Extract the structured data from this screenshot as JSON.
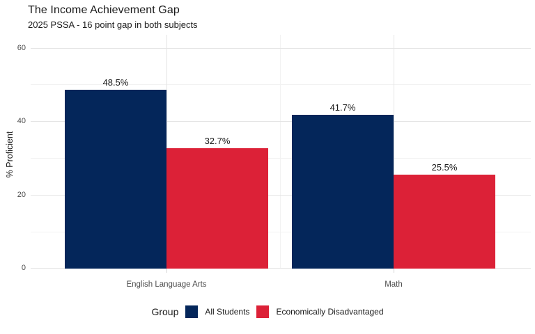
{
  "chart_data": {
    "type": "bar",
    "title": "The Income Achievement Gap",
    "subtitle": "2025 PSSA - 16 point gap in both subjects",
    "ylabel": "% Proficient",
    "xlabel": "",
    "categories": [
      "English Language Arts",
      "Math"
    ],
    "series": [
      {
        "name": "All Students",
        "color": "#04265a",
        "values": [
          48.5,
          41.7
        ]
      },
      {
        "name": "Economically Disadvantaged",
        "color": "#dc2137",
        "values": [
          32.7,
          25.5
        ]
      }
    ],
    "value_label_format": "percent_one_decimal",
    "value_labels": [
      [
        "48.5%",
        "41.7%"
      ],
      [
        "32.7%",
        "25.5%"
      ]
    ],
    "yticks": [
      0,
      20,
      40,
      60
    ],
    "yticks_minor": [
      10,
      30,
      50
    ],
    "ylim": [
      0,
      63.5
    ],
    "grid": "major_and_minor",
    "legend_title": "Group",
    "legend_position": "bottom"
  },
  "colors": {
    "background": "#ffffff",
    "grid_major": "#e4e4e4",
    "grid_minor": "#f2f2f2",
    "tick_text": "#4d4d4d",
    "text": "#1a1a1a",
    "bar_navy": "#04265a",
    "bar_red": "#dc2137"
  }
}
